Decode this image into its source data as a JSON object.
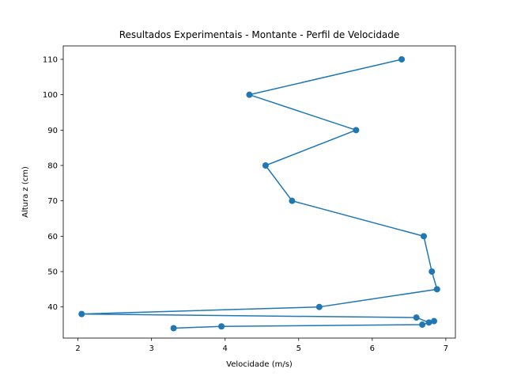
{
  "chart_data": {
    "type": "line",
    "title": "Resultados Experimentais - Montante - Perfil de Velocidade",
    "xlabel": "Velocidade (m/s)",
    "ylabel": "Altura z (cm)",
    "xlim": [
      1.8,
      7.13
    ],
    "ylim": [
      31.2,
      113.8
    ],
    "xticks": [
      2,
      3,
      4,
      5,
      6,
      7
    ],
    "yticks": [
      40,
      50,
      60,
      70,
      80,
      90,
      100,
      110
    ],
    "grid": false,
    "legend": "none",
    "markers": true,
    "series": [
      {
        "color": "#1f77b4",
        "points": [
          {
            "x": 6.4,
            "y": 110
          },
          {
            "x": 4.33,
            "y": 100
          },
          {
            "x": 5.78,
            "y": 90
          },
          {
            "x": 4.55,
            "y": 80
          },
          {
            "x": 4.91,
            "y": 70
          },
          {
            "x": 6.7,
            "y": 60
          },
          {
            "x": 6.81,
            "y": 50
          },
          {
            "x": 6.88,
            "y": 45
          },
          {
            "x": 5.28,
            "y": 40
          },
          {
            "x": 2.05,
            "y": 38
          },
          {
            "x": 6.6,
            "y": 37
          },
          {
            "x": 6.77,
            "y": 35.6
          },
          {
            "x": 6.84,
            "y": 36
          },
          {
            "x": 6.68,
            "y": 35
          },
          {
            "x": 3.95,
            "y": 34.5
          },
          {
            "x": 3.3,
            "y": 34
          }
        ]
      }
    ]
  }
}
